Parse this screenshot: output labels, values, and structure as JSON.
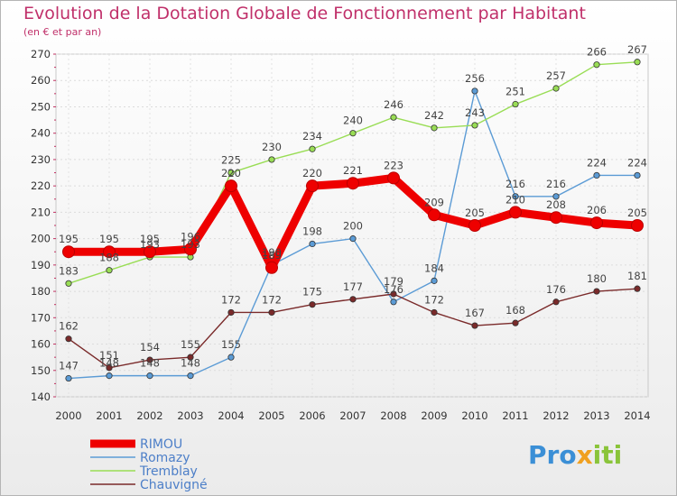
{
  "chart_data": {
    "type": "line",
    "title": "Evolution de la Dotation Globale de Fonctionnement par Habitant",
    "subtitle": "(en € et par an)",
    "xlabel": "",
    "ylabel": "",
    "x": [
      "2000",
      "2001",
      "2002",
      "2003",
      "2004",
      "2005",
      "2006",
      "2007",
      "2008",
      "2009",
      "2010",
      "2011",
      "2012",
      "2013",
      "2014"
    ],
    "ylim": [
      140,
      270
    ],
    "yticks": [
      140,
      150,
      160,
      170,
      180,
      190,
      200,
      210,
      220,
      230,
      240,
      250,
      260,
      270
    ],
    "grid": true,
    "legend_position": "bottom-left",
    "series": [
      {
        "name": "Romazy",
        "color": "#5b9bd5",
        "values": [
          147,
          148,
          148,
          148,
          155,
          190,
          198,
          200,
          176,
          184,
          256,
          216,
          216,
          224,
          224
        ]
      },
      {
        "name": "Tremblay",
        "color": "#99dd55",
        "values": [
          183,
          188,
          193,
          193,
          225,
          230,
          234,
          240,
          246,
          242,
          243,
          251,
          257,
          266,
          267
        ]
      },
      {
        "name": "Chauvigné",
        "color": "#7a2a2a",
        "values": [
          162,
          151,
          154,
          155,
          172,
          172,
          175,
          177,
          179,
          172,
          167,
          168,
          176,
          180,
          181
        ]
      },
      {
        "name": "RIMOU",
        "color": "#ee0000",
        "values": [
          195,
          195,
          195,
          196,
          220,
          189,
          220,
          221,
          223,
          209,
          205,
          210,
          208,
          206,
          205
        ]
      }
    ],
    "legend_order": [
      "RIMOU",
      "Romazy",
      "Tremblay",
      "Chauvigné"
    ]
  },
  "logo": {
    "text": "Pro",
    "x_letter": "x",
    "suffix": "iti"
  }
}
